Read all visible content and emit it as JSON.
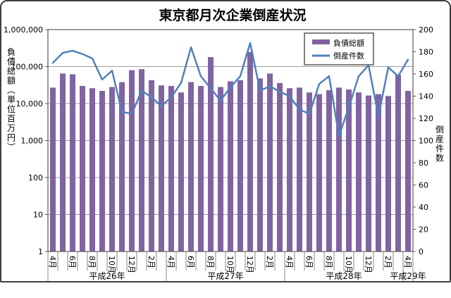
{
  "chart": {
    "title": "東京都月次企業倒産状況",
    "legend": {
      "bar_label": "負債総額",
      "line_label": "倒産件数"
    }
  },
  "chart_data": {
    "type": "combo-bar-line",
    "title": "東京都月次企業倒産状況",
    "grid": true,
    "legend_position": "top-right-inside",
    "categories": [
      "4月",
      "5月",
      "6月",
      "7月",
      "8月",
      "9月",
      "10月",
      "11月",
      "12月",
      "1月",
      "2月",
      "3月",
      "4月",
      "5月",
      "6月",
      "7月",
      "8月",
      "9月",
      "10月",
      "11月",
      "12月",
      "1月",
      "2月",
      "3月",
      "4月",
      "5月",
      "6月",
      "7月",
      "8月",
      "9月",
      "10月",
      "11月",
      "12月",
      "1月",
      "2月",
      "3月",
      "4月"
    ],
    "category_label_every": 2,
    "category_groups": [
      {
        "label": "平成26年",
        "count": 12
      },
      {
        "label": "平成27年",
        "count": 12
      },
      {
        "label": "平成28年",
        "count": 12
      },
      {
        "label": "平成29年",
        "count": 1
      }
    ],
    "left_axis": {
      "title": "負債総額（単位百万円）",
      "scale": "log",
      "min": 1,
      "max": 1000000,
      "ticks": [
        "1",
        "10",
        "100",
        "1,000",
        "10,000",
        "100,000",
        "1,000,000"
      ]
    },
    "right_axis": {
      "title": "倒産件数",
      "scale": "linear",
      "min": 0,
      "max": 200,
      "ticks": [
        0,
        20,
        40,
        60,
        80,
        100,
        120,
        140,
        160,
        180,
        200
      ]
    },
    "series": [
      {
        "name": "負債総額",
        "type": "bar",
        "axis": "left",
        "color": "#8064A2",
        "values": [
          27000,
          65000,
          62000,
          30000,
          26000,
          22000,
          28000,
          38000,
          80000,
          85000,
          43000,
          31000,
          30000,
          20000,
          38000,
          30000,
          180000,
          28000,
          40000,
          43000,
          250000,
          48000,
          65000,
          36000,
          26000,
          27000,
          20000,
          18000,
          23000,
          27000,
          24000,
          20000,
          16500,
          18000,
          16000,
          60000,
          22000
        ]
      },
      {
        "name": "倒産件数",
        "type": "line",
        "axis": "right",
        "color": "#4F81BD",
        "values": [
          170,
          179,
          181,
          178,
          174,
          155,
          163,
          126,
          124,
          145,
          139,
          131,
          139,
          152,
          184,
          158,
          147,
          136,
          148,
          158,
          188,
          145,
          149,
          144,
          140,
          128,
          124,
          151,
          158,
          104,
          130,
          158,
          168,
          122,
          166,
          158,
          173
        ]
      }
    ]
  }
}
